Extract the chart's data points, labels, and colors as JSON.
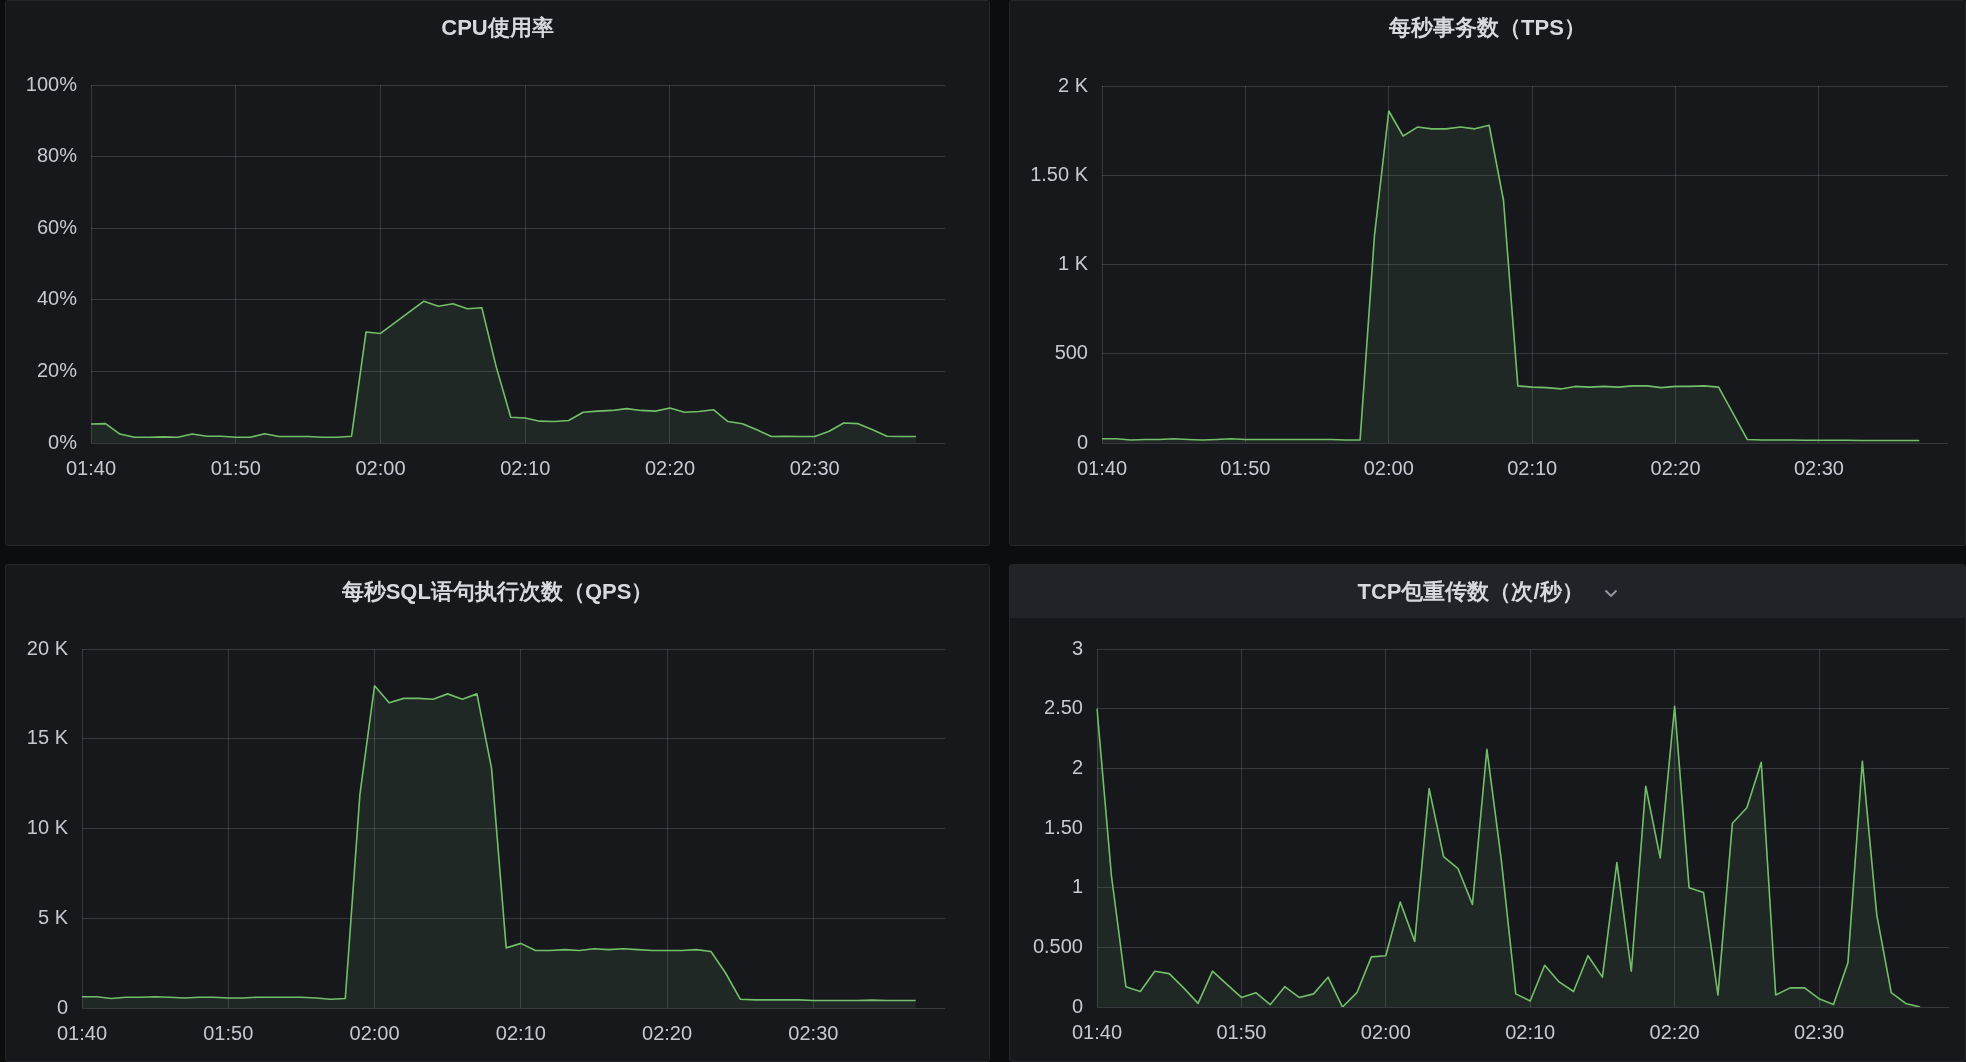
{
  "chart_data": [
    {
      "type": "area",
      "title": "CPU使用率",
      "categories": [
        "01:40",
        null,
        null,
        null,
        null,
        null,
        null,
        null,
        null,
        null,
        "01:50",
        null,
        null,
        null,
        null,
        null,
        null,
        null,
        null,
        null,
        "02:00",
        null,
        null,
        null,
        null,
        null,
        null,
        null,
        null,
        null,
        "02:10",
        null,
        null,
        null,
        null,
        null,
        null,
        null,
        null,
        null,
        "02:20",
        null,
        null,
        null,
        null,
        null,
        null,
        null,
        null,
        null,
        "02:30",
        null,
        null,
        null,
        null,
        null,
        null,
        null,
        null,
        null
      ],
      "values": [
        5.3,
        5.4,
        2.5,
        1.6,
        1.6,
        1.7,
        1.6,
        2.5,
        1.9,
        1.9,
        1.6,
        1.6,
        2.6,
        1.8,
        1.8,
        1.8,
        1.6,
        1.6,
        1.9,
        31,
        30.6,
        33.6,
        36.6,
        39.6,
        38.2,
        38.9,
        37.5,
        37.8,
        21.2,
        7.2,
        7.0,
        6.1,
        6.0,
        6.3,
        8.6,
        8.9,
        9.1,
        9.6,
        9.1,
        8.9,
        9.8,
        8.6,
        8.8,
        9.3,
        6.0,
        5.4,
        3.7,
        1.8,
        1.9,
        1.8,
        1.8,
        3.3,
        5.6,
        5.4,
        3.7,
        1.9,
        1.8,
        1.8,
        null,
        null
      ],
      "color": "#73bf69",
      "ylim": [
        0,
        100
      ],
      "yticks": [
        {
          "value": 0,
          "label": "0%"
        },
        {
          "value": 20,
          "label": "20%"
        },
        {
          "value": 40,
          "label": "40%"
        },
        {
          "value": 60,
          "label": "60%"
        },
        {
          "value": 80,
          "label": "80%"
        },
        {
          "value": 100,
          "label": "100%"
        }
      ],
      "grid": true,
      "marker": "none"
    },
    {
      "type": "area",
      "title": "每秒事务数（TPS）",
      "categories": [
        "01:40",
        null,
        null,
        null,
        null,
        null,
        null,
        null,
        null,
        null,
        "01:50",
        null,
        null,
        null,
        null,
        null,
        null,
        null,
        null,
        null,
        "02:00",
        null,
        null,
        null,
        null,
        null,
        null,
        null,
        null,
        null,
        "02:10",
        null,
        null,
        null,
        null,
        null,
        null,
        null,
        null,
        null,
        "02:20",
        null,
        null,
        null,
        null,
        null,
        null,
        null,
        null,
        null,
        "02:30",
        null,
        null,
        null,
        null,
        null,
        null,
        null,
        null,
        null
      ],
      "values": [
        24,
        24,
        17,
        20,
        20,
        24,
        20,
        17,
        20,
        24,
        20,
        20,
        20,
        20,
        20,
        20,
        20,
        17,
        17,
        1160,
        1860,
        1720,
        1770,
        1760,
        1760,
        1770,
        1760,
        1780,
        1360,
        320,
        313,
        310,
        303,
        317,
        313,
        317,
        313,
        320,
        320,
        310,
        317,
        317,
        320,
        313,
        167,
        20,
        17,
        17,
        17,
        15,
        15,
        15,
        15,
        14,
        14,
        14,
        14,
        14,
        null,
        null
      ],
      "color": "#73bf69",
      "ylim": [
        0,
        2000
      ],
      "yticks": [
        0,
        500,
        {
          "value": 1000,
          "label": "1 K"
        },
        {
          "value": 1500,
          "label": "1.50 K"
        },
        {
          "value": 2000,
          "label": "2 K"
        }
      ],
      "grid": true,
      "marker": "none"
    },
    {
      "type": "area",
      "title": "每秒SQL语句执行次数（QPS）",
      "categories": [
        "01:40",
        null,
        null,
        null,
        null,
        null,
        null,
        null,
        null,
        null,
        "01:50",
        null,
        null,
        null,
        null,
        null,
        null,
        null,
        null,
        null,
        "02:00",
        null,
        null,
        null,
        null,
        null,
        null,
        null,
        null,
        null,
        "02:10",
        null,
        null,
        null,
        null,
        null,
        null,
        null,
        null,
        null,
        "02:20",
        null,
        null,
        null,
        null,
        null,
        null,
        null,
        null,
        null,
        "02:30",
        null,
        null,
        null,
        null,
        null,
        null,
        null,
        null,
        null
      ],
      "values": [
        630,
        630,
        530,
        600,
        600,
        630,
        600,
        560,
        600,
        600,
        560,
        560,
        600,
        600,
        600,
        600,
        560,
        490,
        530,
        11900,
        17950,
        17000,
        17250,
        17250,
        17200,
        17500,
        17200,
        17500,
        13350,
        3350,
        3600,
        3200,
        3200,
        3250,
        3200,
        3300,
        3250,
        3300,
        3250,
        3200,
        3200,
        3200,
        3250,
        3150,
        1950,
        490,
        450,
        450,
        450,
        450,
        420,
        420,
        420,
        420,
        440,
        420,
        420,
        420,
        null,
        null
      ],
      "color": "#73bf69",
      "ylim": [
        0,
        20000
      ],
      "yticks": [
        0,
        {
          "value": 5000,
          "label": "5 K"
        },
        {
          "value": 10000,
          "label": "10 K"
        },
        {
          "value": 15000,
          "label": "15 K"
        },
        {
          "value": 20000,
          "label": "20 K"
        }
      ],
      "grid": true,
      "marker": "none"
    },
    {
      "type": "area",
      "title": "TCP包重传数（次/秒）",
      "categories": [
        "01:40",
        null,
        null,
        null,
        null,
        null,
        null,
        null,
        null,
        null,
        "01:50",
        null,
        null,
        null,
        null,
        null,
        null,
        null,
        null,
        null,
        "02:00",
        null,
        null,
        null,
        null,
        null,
        null,
        null,
        null,
        null,
        "02:10",
        null,
        null,
        null,
        null,
        null,
        null,
        null,
        null,
        null,
        "02:20",
        null,
        null,
        null,
        null,
        null,
        null,
        null,
        null,
        null,
        "02:30",
        null,
        null,
        null,
        null,
        null,
        null,
        null,
        null,
        null
      ],
      "values": [
        2.5,
        1.1,
        0.17,
        0.13,
        0.3,
        0.28,
        0.16,
        0.03,
        0.3,
        0.19,
        0.08,
        0.12,
        0.02,
        0.17,
        0.08,
        0.11,
        0.25,
        0,
        0.12,
        0.42,
        0.43,
        0.88,
        0.55,
        1.83,
        1.26,
        1.16,
        0.86,
        2.16,
        1.23,
        0.11,
        0.05,
        0.35,
        0.21,
        0.13,
        0.43,
        0.25,
        1.21,
        0.3,
        1.85,
        1.25,
        2.52,
        1,
        0.96,
        0.1,
        1.54,
        1.67,
        2.05,
        0.1,
        0.16,
        0.16,
        0.07,
        0.02,
        0.37,
        2.06,
        0.77,
        0.12,
        0.03,
        0,
        null,
        null
      ],
      "color": "#73bf69",
      "ylim": [
        0,
        3
      ],
      "yticks": [
        0,
        {
          "value": 0.5,
          "label": "0.500"
        },
        1,
        {
          "value": 1.5,
          "label": "1.50"
        },
        2,
        {
          "value": 2.5,
          "label": "2.50"
        },
        3
      ],
      "grid": true,
      "marker": "none"
    }
  ]
}
